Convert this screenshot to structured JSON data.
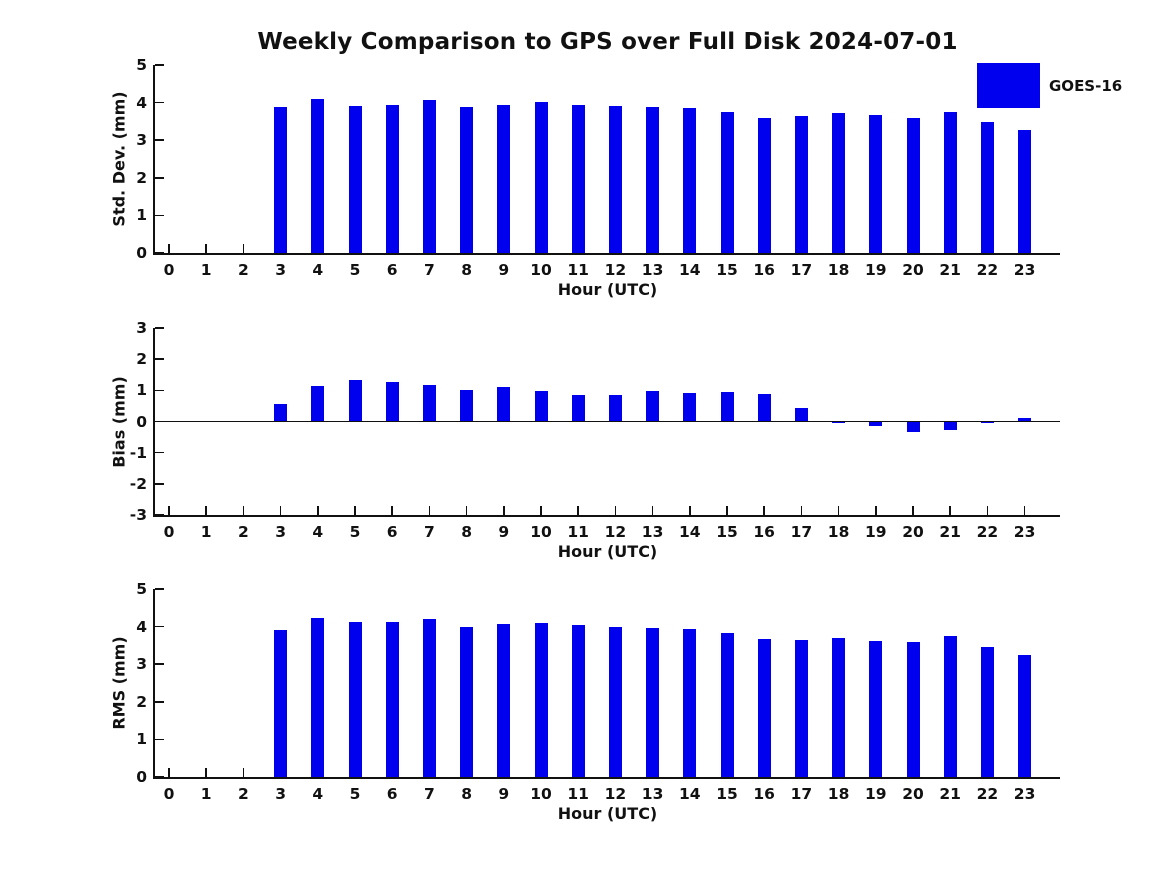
{
  "title": "Weekly Comparison to GPS over Full Disk 2024-07-01",
  "legend": {
    "label": "GOES-16",
    "swatch_color": "#0000EE"
  },
  "bar_color": "#0000EE",
  "chart_data": [
    {
      "type": "bar",
      "panel": "std-dev",
      "ylabel": "Std. Dev. (mm)",
      "xlabel": "Hour (UTC)",
      "ylim": [
        0,
        5
      ],
      "yticks": [
        5,
        4,
        3,
        2,
        1,
        0
      ],
      "grid": "off",
      "categories": [
        "0",
        "1",
        "2",
        "3",
        "4",
        "5",
        "6",
        "7",
        "8",
        "9",
        "10",
        "11",
        "12",
        "13",
        "14",
        "15",
        "16",
        "17",
        "18",
        "19",
        "20",
        "21",
        "22",
        "23"
      ],
      "values": [
        null,
        null,
        null,
        3.89,
        4.1,
        3.91,
        3.94,
        4.06,
        3.89,
        3.93,
        4.01,
        3.93,
        3.92,
        3.89,
        3.86,
        3.75,
        3.58,
        3.64,
        3.72,
        3.67,
        3.59,
        3.74,
        3.48,
        3.28
      ]
    },
    {
      "type": "bar",
      "panel": "bias",
      "ylabel": "Bias (mm)",
      "xlabel": "Hour (UTC)",
      "ylim": [
        -3,
        3
      ],
      "yticks": [
        3,
        2,
        1,
        0,
        -1,
        -2,
        -3
      ],
      "zero_line": true,
      "grid": "off",
      "categories": [
        "0",
        "1",
        "2",
        "3",
        "4",
        "5",
        "6",
        "7",
        "8",
        "9",
        "10",
        "11",
        "12",
        "13",
        "14",
        "15",
        "16",
        "17",
        "18",
        "19",
        "20",
        "21",
        "22",
        "23"
      ],
      "values": [
        null,
        null,
        null,
        0.55,
        1.15,
        1.33,
        1.27,
        1.18,
        1.02,
        1.12,
        0.98,
        0.85,
        0.86,
        0.99,
        0.93,
        0.94,
        0.89,
        0.44,
        -0.02,
        -0.16,
        -0.33,
        -0.28,
        -0.04,
        0.1
      ]
    },
    {
      "type": "bar",
      "panel": "rms",
      "ylabel": "RMS (mm)",
      "xlabel": "Hour (UTC)",
      "ylim": [
        0,
        5
      ],
      "yticks": [
        5,
        4,
        3,
        2,
        1,
        0
      ],
      "grid": "off",
      "categories": [
        "0",
        "1",
        "2",
        "3",
        "4",
        "5",
        "6",
        "7",
        "8",
        "9",
        "10",
        "11",
        "12",
        "13",
        "14",
        "15",
        "16",
        "17",
        "18",
        "19",
        "20",
        "21",
        "22",
        "23"
      ],
      "values": [
        null,
        null,
        null,
        3.9,
        4.24,
        4.11,
        4.13,
        4.21,
        4.0,
        4.07,
        4.1,
        4.03,
        4.0,
        3.97,
        3.94,
        3.84,
        3.67,
        3.64,
        3.7,
        3.63,
        3.58,
        3.75,
        3.45,
        3.25
      ]
    }
  ]
}
